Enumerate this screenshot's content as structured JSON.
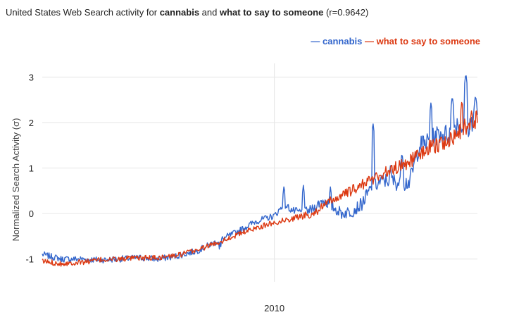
{
  "title": {
    "prefix": "United States Web Search activity for ",
    "term1": "cannabis",
    "middle": " and ",
    "term2": "what to say to someone",
    "suffix": " (r=0.9642)"
  },
  "chart_data": {
    "type": "line",
    "ylabel": "Normalized Search Activity (σ)",
    "xlabel": "",
    "ylim": [
      -1.5,
      3.3
    ],
    "yticks": [
      -1,
      0,
      1,
      2,
      3
    ],
    "xlim": [
      2004.0,
      2015.25
    ],
    "xticks": [
      {
        "value": 2010,
        "label": "2010"
      }
    ],
    "grid": true,
    "legend_position": "top-right",
    "series": [
      {
        "name": "cannabis",
        "color": "#3366cc",
        "points": [
          [
            2004.0,
            -0.9
          ],
          [
            2004.5,
            -1.0
          ],
          [
            2005.0,
            -1.0
          ],
          [
            2005.5,
            -1.02
          ],
          [
            2006.0,
            -1.0
          ],
          [
            2006.5,
            -0.97
          ],
          [
            2007.0,
            -1.0
          ],
          [
            2007.5,
            -0.93
          ],
          [
            2008.0,
            -0.82
          ],
          [
            2008.5,
            -0.62
          ],
          [
            2009.0,
            -0.42
          ],
          [
            2009.5,
            -0.18
          ],
          [
            2010.0,
            -0.05
          ],
          [
            2010.25,
            0.2
          ],
          [
            2010.5,
            0.05
          ],
          [
            2010.75,
            0.02
          ],
          [
            2011.0,
            0.1
          ],
          [
            2011.25,
            0.3
          ],
          [
            2011.5,
            0.15
          ],
          [
            2011.75,
            0.0
          ],
          [
            2012.0,
            0.05
          ],
          [
            2012.25,
            0.2
          ],
          [
            2012.5,
            0.55
          ],
          [
            2012.75,
            0.7
          ],
          [
            2013.0,
            0.75
          ],
          [
            2013.25,
            0.65
          ],
          [
            2013.5,
            0.7
          ],
          [
            2013.75,
            1.5
          ],
          [
            2014.0,
            1.6
          ],
          [
            2014.25,
            1.75
          ],
          [
            2014.5,
            1.75
          ],
          [
            2014.75,
            2.0
          ],
          [
            2015.0,
            1.85
          ],
          [
            2015.25,
            2.3
          ]
        ],
        "spikes": [
          [
            2008.6,
            -0.6
          ],
          [
            2010.25,
            0.62
          ],
          [
            2010.75,
            0.62
          ],
          [
            2011.45,
            0.6
          ],
          [
            2012.55,
            2.0
          ],
          [
            2013.0,
            1.05
          ],
          [
            2013.3,
            1.35
          ],
          [
            2014.05,
            2.45
          ],
          [
            2014.6,
            2.6
          ],
          [
            2014.95,
            3.1
          ],
          [
            2015.2,
            2.62
          ]
        ]
      },
      {
        "name": "what to say to someone",
        "color": "#dc3912",
        "points": [
          [
            2004.0,
            -1.05
          ],
          [
            2004.5,
            -1.1
          ],
          [
            2005.0,
            -1.07
          ],
          [
            2005.5,
            -1.02
          ],
          [
            2006.0,
            -1.0
          ],
          [
            2006.5,
            -0.98
          ],
          [
            2007.0,
            -0.97
          ],
          [
            2007.5,
            -0.92
          ],
          [
            2008.0,
            -0.8
          ],
          [
            2008.5,
            -0.65
          ],
          [
            2009.0,
            -0.48
          ],
          [
            2009.5,
            -0.32
          ],
          [
            2010.0,
            -0.2
          ],
          [
            2010.5,
            -0.1
          ],
          [
            2011.0,
            0.0
          ],
          [
            2011.5,
            0.3
          ],
          [
            2012.0,
            0.5
          ],
          [
            2012.5,
            0.75
          ],
          [
            2013.0,
            0.95
          ],
          [
            2013.5,
            1.15
          ],
          [
            2014.0,
            1.45
          ],
          [
            2014.5,
            1.6
          ],
          [
            2014.75,
            1.75
          ],
          [
            2015.0,
            1.95
          ],
          [
            2015.25,
            2.1
          ]
        ],
        "spikes": [
          [
            2014.85,
            2.5
          ],
          [
            2015.1,
            2.3
          ]
        ]
      }
    ]
  }
}
